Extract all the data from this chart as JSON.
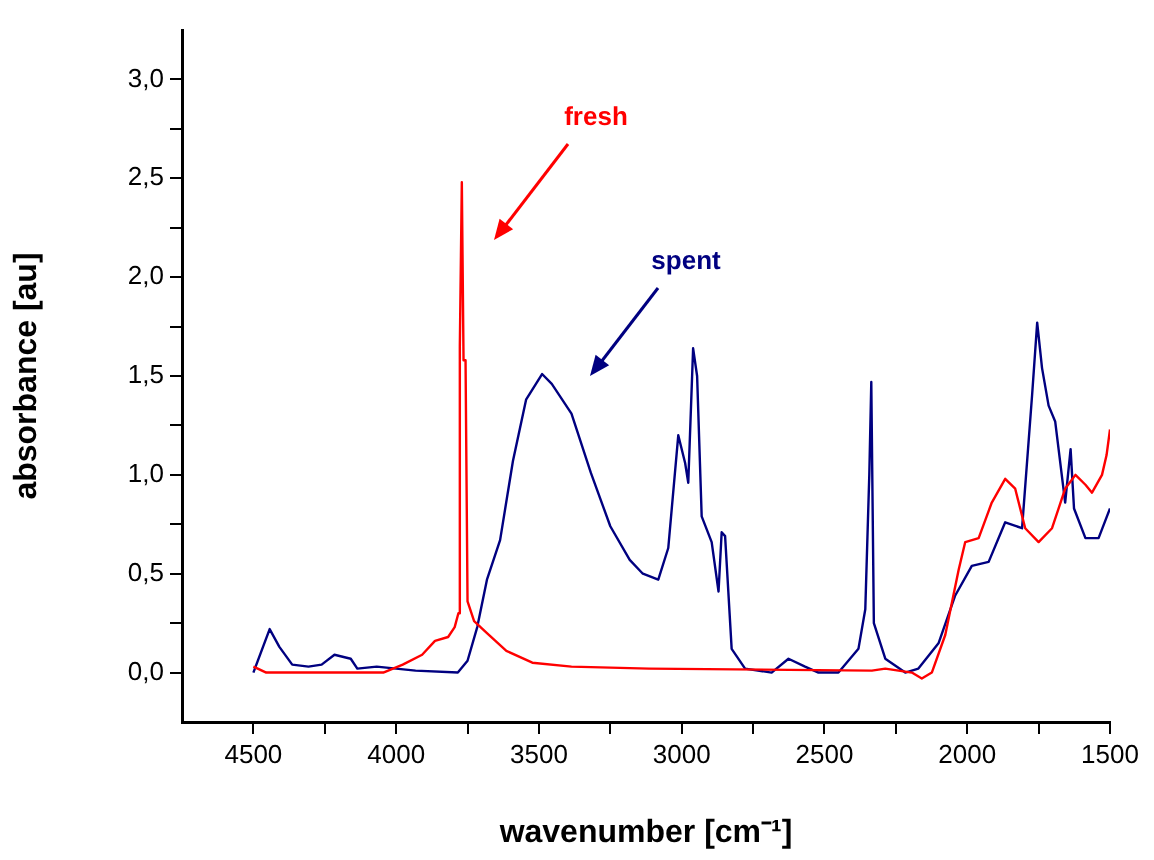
{
  "chart_data": {
    "type": "line",
    "xlabel": "wavenumber [cm⁻¹]",
    "ylabel": "absorbance [au]",
    "xlim": [
      4750,
      1500
    ],
    "xticks": [
      4500,
      {
        "value": 4250,
        "label": null
      },
      4000,
      {
        "value": 3750,
        "label": null
      },
      3500,
      {
        "value": 3250,
        "label": null
      },
      3000,
      {
        "value": 2750,
        "label": null
      },
      2500,
      {
        "value": 2250,
        "label": null
      },
      2000,
      {
        "value": 1750,
        "label": null
      },
      1500
    ],
    "ylim": [
      -0.25,
      3.25
    ],
    "yticks": [
      {
        "value": 0,
        "label": "0,0"
      },
      {
        "value": 0.25,
        "label": null
      },
      {
        "value": 0.5,
        "label": "0,5"
      },
      {
        "value": 0.75,
        "label": null
      },
      {
        "value": 1,
        "label": "1,0"
      },
      {
        "value": 1.25,
        "label": null
      },
      {
        "value": 1.5,
        "label": "1,5"
      },
      {
        "value": 1.75,
        "label": null
      },
      {
        "value": 2,
        "label": "2,0"
      },
      {
        "value": 2.25,
        "label": null
      },
      {
        "value": 2.5,
        "label": "2,5"
      },
      {
        "value": 2.75,
        "label": null
      },
      {
        "value": 3,
        "label": "3,0"
      }
    ],
    "series": [
      {
        "name": "fresh",
        "color": "#ff0000",
        "x": [
          4500,
          4455,
          4045,
          3977,
          3909,
          3864,
          3818,
          3795,
          3782,
          3777,
          3770,
          3764,
          3757,
          3750,
          3727,
          3682,
          3614,
          3523,
          3386,
          3114,
          2334,
          2287,
          2194,
          2159,
          2124,
          2077,
          2030,
          2007,
          1960,
          1914,
          1867,
          1832,
          1797,
          1750,
          1703,
          1657,
          1621,
          1586,
          1563,
          1528,
          1512,
          1500
        ],
        "values": [
          0.03,
          0,
          0,
          0.04,
          0.09,
          0.16,
          0.18,
          0.23,
          0.3,
          1.65,
          2.48,
          1.58,
          1.58,
          0.36,
          0.26,
          0.2,
          0.11,
          0.05,
          0.03,
          0.02,
          0.01,
          0.02,
          0,
          -0.03,
          0,
          0.19,
          0.52,
          0.66,
          0.68,
          0.86,
          0.98,
          0.93,
          0.73,
          0.66,
          0.73,
          0.93,
          1,
          0.95,
          0.91,
          1,
          1.1,
          1.23
        ]
      },
      {
        "name": "spent",
        "color": "#000080",
        "x": [
          4500,
          4443,
          4409,
          4364,
          4307,
          4261,
          4216,
          4159,
          4136,
          4068,
          4000,
          3932,
          3784,
          3750,
          3716,
          3682,
          3636,
          3591,
          3545,
          3489,
          3455,
          3386,
          3318,
          3250,
          3182,
          3136,
          3082,
          3047,
          3012,
          2988,
          2977,
          2960,
          2946,
          2930,
          2895,
          2871,
          2860,
          2848,
          2825,
          2778,
          2685,
          2626,
          2568,
          2521,
          2451,
          2381,
          2357,
          2343,
          2336,
          2327,
          2287,
          2217,
          2171,
          2100,
          2042,
          1984,
          1925,
          1867,
          1808,
          1773,
          1755,
          1738,
          1715,
          1692,
          1657,
          1638,
          1626,
          1586,
          1540,
          1500
        ],
        "values": [
          0,
          0.22,
          0.13,
          0.04,
          0.03,
          0.04,
          0.09,
          0.07,
          0.02,
          0.03,
          0.02,
          0.01,
          0,
          0.06,
          0.23,
          0.47,
          0.67,
          1.07,
          1.38,
          1.51,
          1.46,
          1.31,
          1.01,
          0.74,
          0.57,
          0.5,
          0.47,
          0.63,
          1.2,
          1.06,
          0.96,
          1.64,
          1.5,
          0.79,
          0.66,
          0.41,
          0.71,
          0.69,
          0.12,
          0.02,
          0,
          0.07,
          0.03,
          0,
          0,
          0.12,
          0.32,
          1,
          1.47,
          0.25,
          0.07,
          0,
          0.02,
          0.15,
          0.39,
          0.54,
          0.56,
          0.76,
          0.73,
          1.4,
          1.77,
          1.54,
          1.35,
          1.27,
          0.86,
          1.13,
          0.83,
          0.68,
          0.68,
          0.83
        ]
      }
    ]
  }
}
